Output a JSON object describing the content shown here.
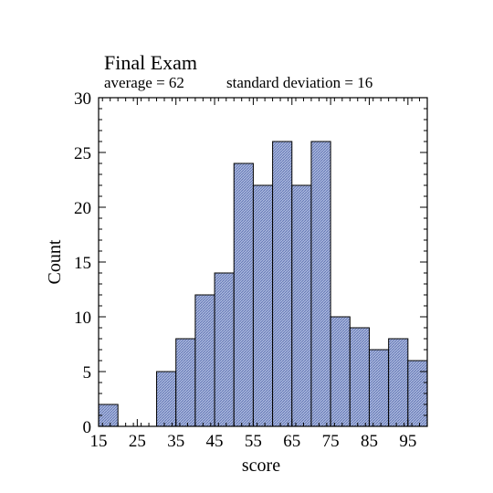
{
  "chart_data": {
    "type": "bar",
    "title": "Final Exam",
    "subtitle_left": "average = 62",
    "subtitle_right": "standard deviation = 16",
    "xlabel": "score",
    "ylabel": "Count",
    "bin_width": 5,
    "bins": [
      {
        "start": 15,
        "end": 20,
        "count": 2
      },
      {
        "start": 20,
        "end": 25,
        "count": 0
      },
      {
        "start": 25,
        "end": 30,
        "count": 0
      },
      {
        "start": 30,
        "end": 35,
        "count": 5
      },
      {
        "start": 35,
        "end": 40,
        "count": 8
      },
      {
        "start": 40,
        "end": 45,
        "count": 12
      },
      {
        "start": 45,
        "end": 50,
        "count": 14
      },
      {
        "start": 50,
        "end": 55,
        "count": 24
      },
      {
        "start": 55,
        "end": 60,
        "count": 22
      },
      {
        "start": 60,
        "end": 65,
        "count": 26
      },
      {
        "start": 65,
        "end": 70,
        "count": 22
      },
      {
        "start": 70,
        "end": 75,
        "count": 26
      },
      {
        "start": 75,
        "end": 80,
        "count": 10
      },
      {
        "start": 80,
        "end": 85,
        "count": 9
      },
      {
        "start": 85,
        "end": 90,
        "count": 7
      },
      {
        "start": 90,
        "end": 95,
        "count": 8
      },
      {
        "start": 95,
        "end": 100,
        "count": 6
      }
    ],
    "xlim": [
      15,
      100
    ],
    "ylim": [
      0,
      30
    ],
    "x_ticks": [
      "15",
      "25",
      "35",
      "45",
      "55",
      "65",
      "75",
      "85",
      "95"
    ],
    "y_ticks": [
      "0",
      "5",
      "10",
      "15",
      "20",
      "25",
      "30"
    ],
    "grid": false,
    "bar_fill": "#aab7dd",
    "bar_hatch": "#5a6fb0",
    "bar_edge": "#000000"
  }
}
